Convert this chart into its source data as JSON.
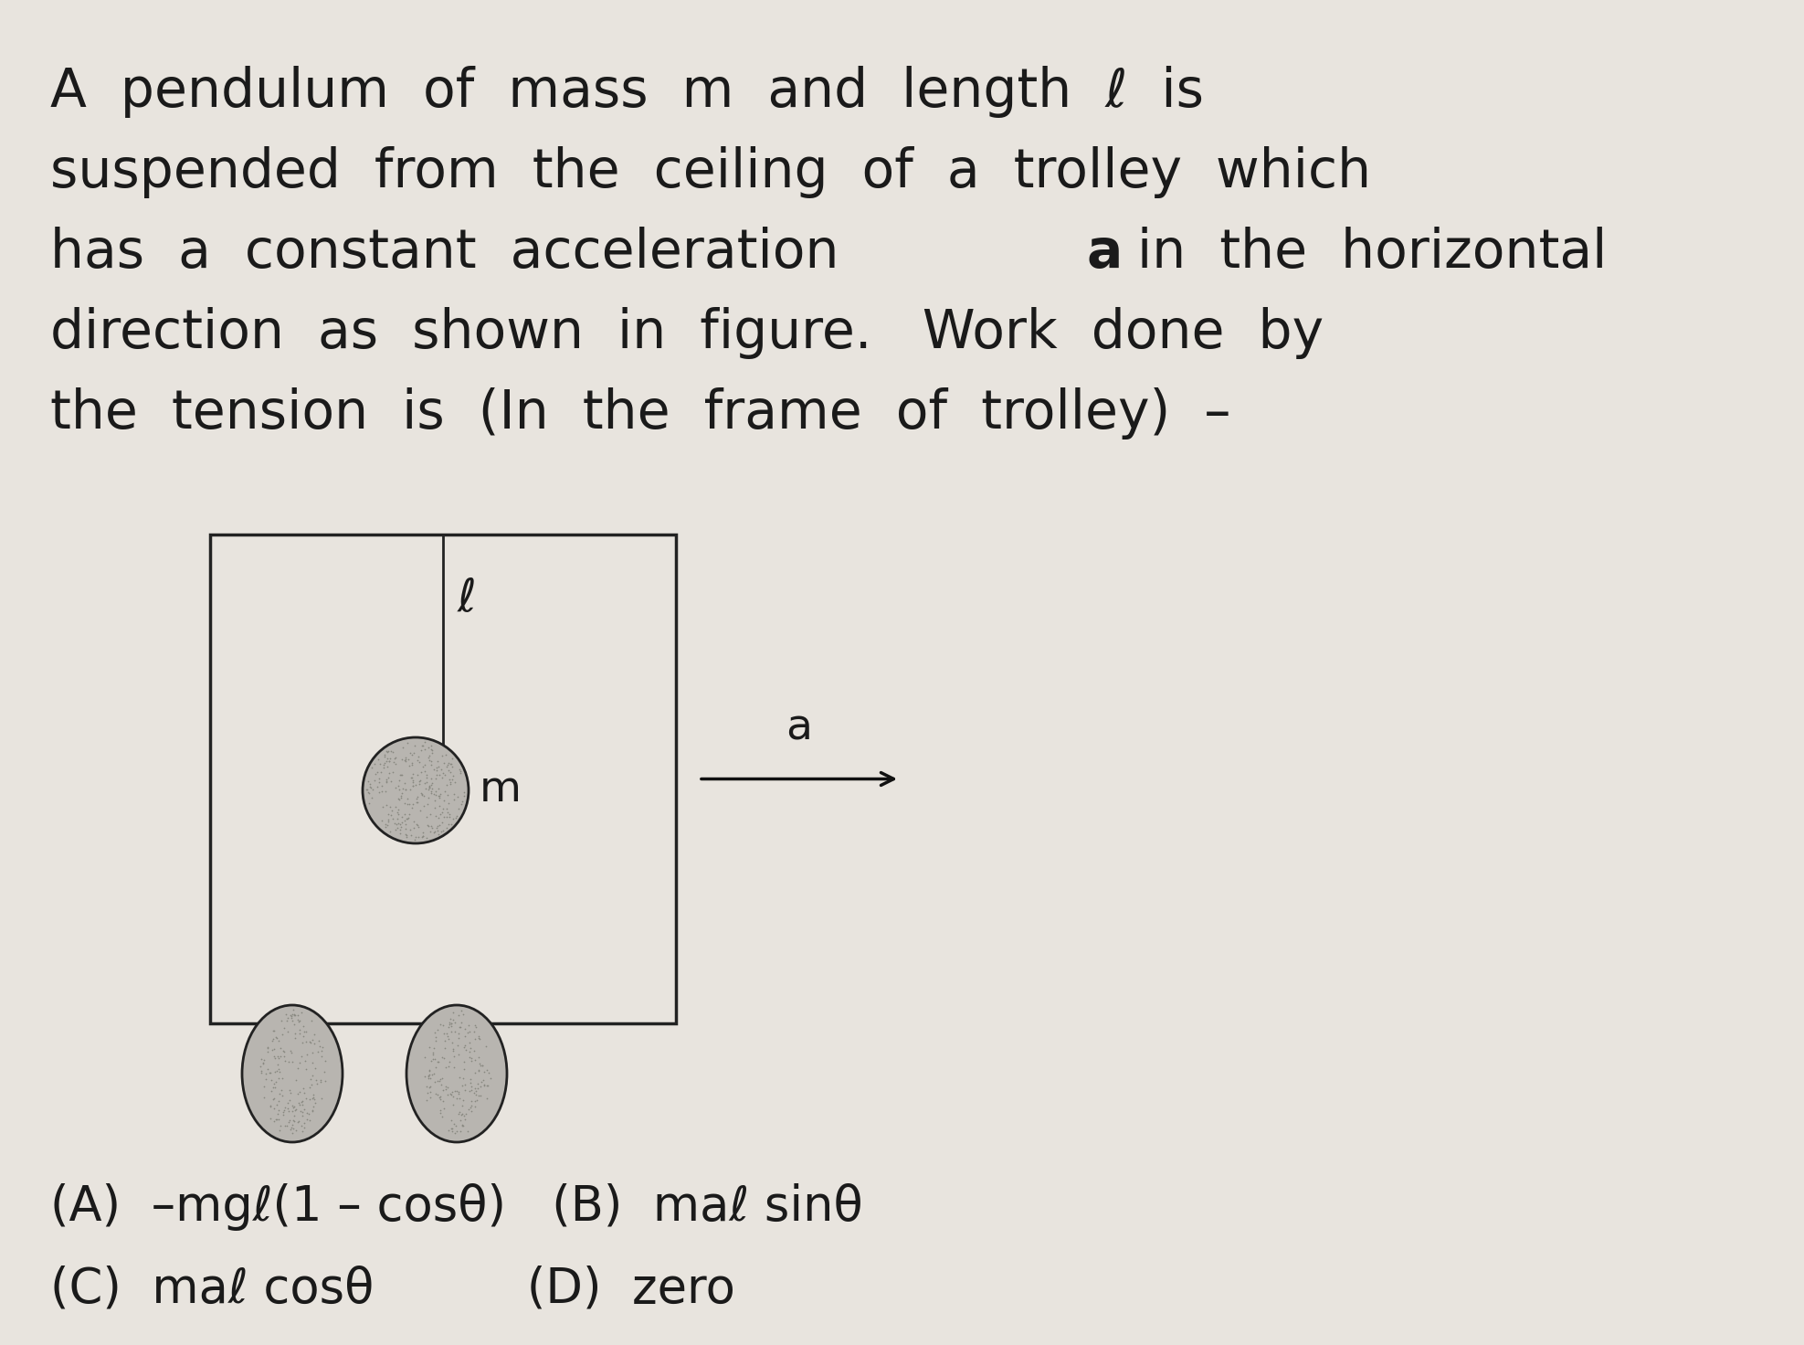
{
  "bg_color": "#e8e4de",
  "text_color": "#1a1a1a",
  "fig_w": 19.75,
  "fig_h": 14.72,
  "dpi": 100,
  "title_lines": [
    "A  pendulum  of  mass  m  and  length  ℓ  is",
    "suspended  from  the  ceiling  of  a  trolley  which",
    "has  a  constant  acceleration  a  in  the  horizontal",
    "direction  as  shown  in  figure.   Work  done  by",
    "the  tension  is  (In  the  frame  of  trolley)  –"
  ],
  "bold_a_before": "has  a  constant  acceleration  ",
  "bold_a_after": "  in  the  horizontal",
  "answer_line1": "(A)  –mgℓ(1 – cosθ)   (B)  maℓ sinθ",
  "answer_line2": "(C)  maℓ cosθ          (D)  zero",
  "font_size_title": 42,
  "font_size_answer": 38,
  "font_size_label": 34,
  "font_size_ell": 36,
  "trolley_fc": "#e0ddd8",
  "trolley_ec": "#222222",
  "trolley_lw": 2.5,
  "bob_fc": "#b8b5b0",
  "bob_ec": "#222222",
  "bob_lw": 2.0,
  "wheel_fc": "#b8b5b0",
  "wheel_ec": "#222222",
  "wheel_lw": 2.0,
  "arrow_color": "#111111",
  "string_color": "#222222"
}
